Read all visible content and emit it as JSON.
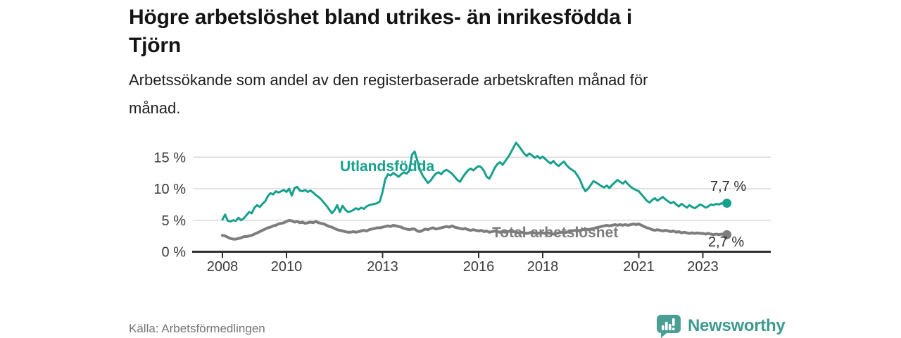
{
  "header": {
    "title_lines": [
      "Högre arbetslöshet bland utrikes- än inrikesfödda i",
      "Tjörn"
    ],
    "subtitle_lines": [
      "Arbetssökande som andel av den registerbaserade arbetskraften månad för",
      "månad."
    ]
  },
  "footer": {
    "source": "Källa: Arbetsförmedlingen",
    "brand_name": "Newsworthy",
    "brand_icon": "speech-bubble-bar-chart",
    "brand_icon_color": "#4b9e93",
    "brand_text_color": "#3e9a8f"
  },
  "chart_data": {
    "type": "line",
    "title": "Högre arbetslöshet bland utrikes- än inrikesfödda i Tjörn",
    "subtitle": "Arbetssökande som andel av den registerbaserade arbetskraften månad för månad.",
    "frequency": "monthly",
    "start": "2008-01",
    "end": "2023-10",
    "xlim": [
      2007.1,
      2025.1
    ],
    "ylim": [
      0,
      18
    ],
    "grid": true,
    "legend": "inline-labels",
    "y_ticks": [
      {
        "value": 0,
        "label": "0 %"
      },
      {
        "value": 5,
        "label": "5 %"
      },
      {
        "value": 10,
        "label": "10 %"
      },
      {
        "value": 15,
        "label": "15 %"
      }
    ],
    "x_ticks": [
      {
        "value": 2008,
        "label": "2008"
      },
      {
        "value": 2010,
        "label": "2010"
      },
      {
        "value": 2013,
        "label": "2013"
      },
      {
        "value": 2016,
        "label": "2016"
      },
      {
        "value": 2018,
        "label": "2018"
      },
      {
        "value": 2021,
        "label": "2021"
      },
      {
        "value": 2023,
        "label": "2023"
      }
    ],
    "axis_color": "#2f2f2f",
    "grid_color": "#d9d9d9",
    "tick_text_color": "#3a3a3a",
    "series": [
      {
        "name": "Utlandsfödda",
        "color": "#17a08d",
        "end_value": 7.7,
        "end_label": "7,7 %",
        "values": [
          5.1,
          5.9,
          4.9,
          4.8,
          5.0,
          4.9,
          5.4,
          5.0,
          5.3,
          5.8,
          6.3,
          6.1,
          7.0,
          7.4,
          7.1,
          7.6,
          8.0,
          8.8,
          9.3,
          9.1,
          9.6,
          9.4,
          9.6,
          9.8,
          9.5,
          10.0,
          8.9,
          10.1,
          10.3,
          9.7,
          9.6,
          9.8,
          9.5,
          9.7,
          9.4,
          9.0,
          8.7,
          8.3,
          7.8,
          7.3,
          6.7,
          6.1,
          6.6,
          7.4,
          6.3,
          7.3,
          6.7,
          6.3,
          6.4,
          6.6,
          6.9,
          6.7,
          7.0,
          6.8,
          7.2,
          7.4,
          7.5,
          7.6,
          7.7,
          8.0,
          9.5,
          11.5,
          12.3,
          12.1,
          12.5,
          12.2,
          11.9,
          12.3,
          12.6,
          12.4,
          12.8,
          15.4,
          15.9,
          14.5,
          13.0,
          12.1,
          11.5,
          10.9,
          11.3,
          11.9,
          12.4,
          12.6,
          12.3,
          12.8,
          13.0,
          12.7,
          12.4,
          11.9,
          11.4,
          11.1,
          11.8,
          12.4,
          12.9,
          13.2,
          12.9,
          13.3,
          13.6,
          13.4,
          12.8,
          11.9,
          11.6,
          12.4,
          13.3,
          13.9,
          14.2,
          13.8,
          14.4,
          15.0,
          15.7,
          16.5,
          17.3,
          16.8,
          16.2,
          15.6,
          15.2,
          15.6,
          15.3,
          14.9,
          15.2,
          14.8,
          15.1,
          14.7,
          14.3,
          14.0,
          14.4,
          13.9,
          13.6,
          14.0,
          14.3,
          13.7,
          13.3,
          13.0,
          12.7,
          12.1,
          11.4,
          10.3,
          9.6,
          10.0,
          10.6,
          11.2,
          11.0,
          10.7,
          10.4,
          10.2,
          10.5,
          10.1,
          10.6,
          11.0,
          11.4,
          11.1,
          10.8,
          11.2,
          10.7,
          10.3,
          10.0,
          9.8,
          9.6,
          9.1,
          8.6,
          8.1,
          7.8,
          8.2,
          8.5,
          8.1,
          8.4,
          8.7,
          8.3,
          8.0,
          7.7,
          7.9,
          7.5,
          7.2,
          7.6,
          7.3,
          7.0,
          7.4,
          7.1,
          6.9,
          7.2,
          7.5,
          7.3,
          7.0,
          7.2,
          7.5,
          7.4,
          7.6,
          7.5,
          7.7,
          7.6,
          7.7
        ]
      },
      {
        "name": "Total arbetslöshet",
        "color": "#7d7d7d",
        "end_value": 2.7,
        "end_label": "2,7 %",
        "values": [
          2.6,
          2.5,
          2.3,
          2.1,
          2.0,
          2.0,
          2.1,
          2.2,
          2.4,
          2.4,
          2.5,
          2.6,
          2.8,
          3.0,
          3.2,
          3.4,
          3.6,
          3.8,
          3.9,
          4.1,
          4.2,
          4.4,
          4.5,
          4.6,
          4.8,
          5.0,
          4.9,
          4.7,
          4.8,
          4.6,
          4.7,
          4.5,
          4.6,
          4.7,
          4.6,
          4.8,
          4.6,
          4.5,
          4.4,
          4.2,
          4.0,
          3.9,
          3.7,
          3.5,
          3.4,
          3.3,
          3.2,
          3.1,
          3.1,
          3.2,
          3.1,
          3.2,
          3.3,
          3.4,
          3.3,
          3.5,
          3.6,
          3.7,
          3.8,
          3.8,
          3.9,
          4.0,
          4.1,
          4.0,
          4.2,
          4.1,
          4.0,
          3.9,
          3.7,
          3.6,
          3.5,
          3.6,
          3.6,
          3.3,
          3.2,
          3.4,
          3.6,
          3.5,
          3.7,
          3.8,
          3.6,
          3.7,
          3.8,
          3.9,
          4.0,
          3.9,
          4.1,
          3.9,
          3.8,
          3.7,
          3.6,
          3.7,
          3.5,
          3.4,
          3.5,
          3.4,
          3.3,
          3.4,
          3.2,
          3.3,
          3.1,
          3.2,
          3.3,
          3.2,
          3.1,
          3.2,
          3.1,
          3.2,
          3.3,
          3.2,
          3.1,
          3.0,
          3.1,
          3.0,
          2.9,
          3.0,
          3.1,
          3.0,
          2.9,
          3.0,
          3.0,
          2.9,
          3.0,
          2.9,
          2.8,
          2.9,
          3.0,
          3.1,
          3.0,
          3.1,
          3.2,
          3.3,
          3.4,
          3.3,
          3.4,
          3.5,
          3.6,
          3.5,
          3.6,
          3.7,
          3.8,
          3.9,
          4.0,
          4.1,
          4.2,
          4.1,
          4.2,
          4.3,
          4.2,
          4.3,
          4.2,
          4.3,
          4.2,
          4.3,
          4.4,
          4.3,
          4.4,
          4.2,
          4.0,
          3.8,
          3.7,
          3.5,
          3.4,
          3.5,
          3.4,
          3.3,
          3.4,
          3.3,
          3.2,
          3.3,
          3.1,
          3.2,
          3.0,
          3.1,
          3.0,
          2.9,
          3.0,
          2.9,
          3.0,
          2.9,
          2.9,
          2.8,
          2.9,
          2.8,
          2.7,
          2.8,
          2.7,
          2.8,
          2.7,
          2.7
        ]
      }
    ]
  }
}
